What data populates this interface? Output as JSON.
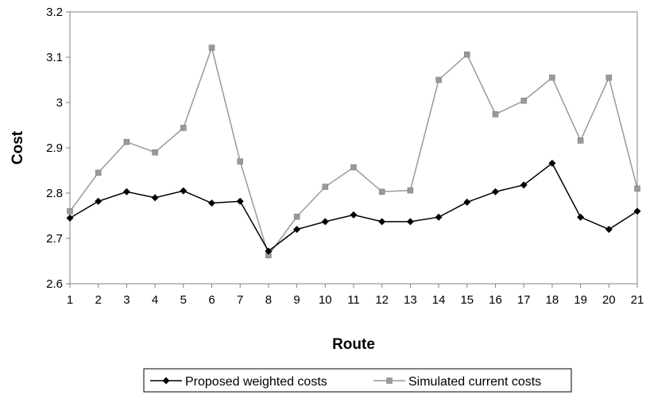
{
  "chart_data": {
    "type": "line",
    "xlabel": "Route",
    "ylabel": "Cost",
    "ylim": [
      2.6,
      3.2
    ],
    "yticks": [
      "2.6",
      "2.7",
      "2.8",
      "2.9",
      "3",
      "3.1",
      "3.2"
    ],
    "categories": [
      "1",
      "2",
      "3",
      "4",
      "5",
      "6",
      "7",
      "8",
      "9",
      "10",
      "11",
      "12",
      "13",
      "14",
      "15",
      "16",
      "17",
      "18",
      "19",
      "20",
      "21"
    ],
    "grid": false,
    "legend_position": "bottom",
    "series": [
      {
        "name": "Proposed weighted costs",
        "color": "#000000",
        "marker": "diamond",
        "values": [
          2.745,
          2.782,
          2.803,
          2.79,
          2.805,
          2.778,
          2.782,
          2.672,
          2.72,
          2.737,
          2.752,
          2.737,
          2.737,
          2.747,
          2.78,
          2.803,
          2.818,
          2.866,
          2.747,
          2.72,
          2.76
        ]
      },
      {
        "name": "Simulated current costs",
        "color": "#999999",
        "marker": "square",
        "values": [
          2.76,
          2.845,
          2.913,
          2.89,
          2.944,
          3.121,
          2.87,
          2.663,
          2.748,
          2.814,
          2.857,
          2.803,
          2.806,
          3.05,
          3.106,
          2.974,
          3.004,
          3.055,
          2.916,
          3.055,
          2.81
        ]
      }
    ]
  }
}
